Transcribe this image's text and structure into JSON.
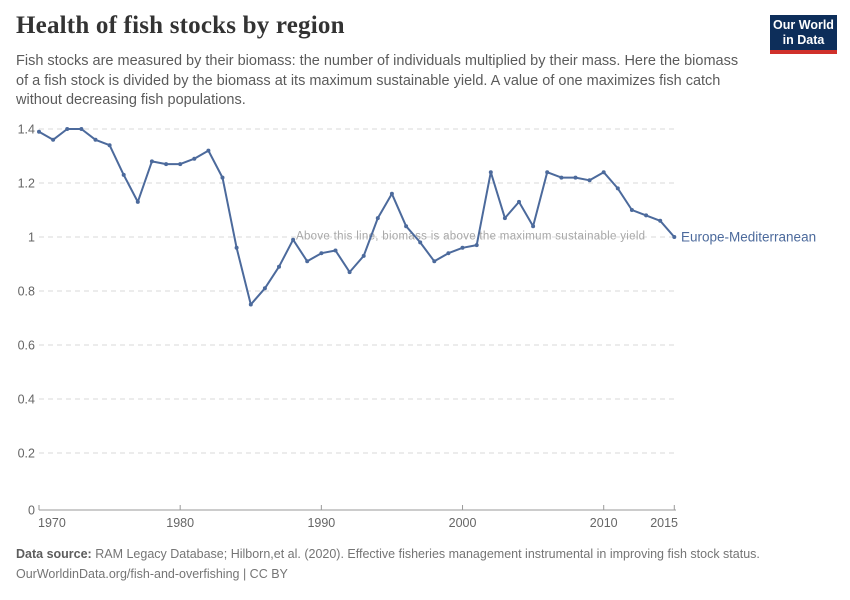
{
  "header": {
    "title": "Health of fish stocks by region",
    "subtitle_lines": [
      "Fish stocks are measured by their biomass: the number of individuals multiplied by their mass. Here the biomass",
      "of a fish stock is divided by the biomass at its maximum sustainable yield. A value of one maximizes fish catch",
      "without decreasing fish populations."
    ],
    "logo": {
      "line1": "Our World",
      "line2": "in Data",
      "bg_color": "#0d2e5a",
      "bar_color": "#d0312b"
    }
  },
  "chart_data": {
    "type": "line",
    "title": "Health of fish stocks by region",
    "xlabel": "",
    "ylabel": "",
    "xlim": [
      1970,
      2015
    ],
    "ylim": [
      0,
      1.4
    ],
    "x_ticks": [
      1970,
      1980,
      1990,
      2000,
      2010,
      2015
    ],
    "y_ticks": [
      0,
      0.2,
      0.4,
      0.6,
      0.8,
      1,
      1.2,
      1.4
    ],
    "grid": "dashed-horizontal",
    "annotation": "Above this line, biomass is above the maximum sustainable yield",
    "annotation_color": "#a8a8a8",
    "gridline_color": "#d9d9d9",
    "axis_color": "#999999",
    "tick_label_color": "#666666",
    "series": [
      {
        "name": "Europe-Mediterranean",
        "color": "#4c6a9c",
        "x": [
          1970,
          1971,
          1972,
          1973,
          1974,
          1975,
          1976,
          1977,
          1978,
          1979,
          1980,
          1981,
          1982,
          1983,
          1984,
          1985,
          1986,
          1987,
          1988,
          1989,
          1990,
          1991,
          1992,
          1993,
          1994,
          1995,
          1996,
          1997,
          1998,
          1999,
          2000,
          2001,
          2002,
          2003,
          2004,
          2005,
          2006,
          2007,
          2008,
          2009,
          2010,
          2011,
          2012,
          2013,
          2014,
          2015
        ],
        "values": [
          1.39,
          1.36,
          1.4,
          1.4,
          1.36,
          1.34,
          1.23,
          1.13,
          1.28,
          1.27,
          1.27,
          1.29,
          1.32,
          1.22,
          0.96,
          0.75,
          0.81,
          0.89,
          0.99,
          0.91,
          0.94,
          0.95,
          0.87,
          0.93,
          1.07,
          1.16,
          1.04,
          0.98,
          0.91,
          0.94,
          0.96,
          0.97,
          1.24,
          1.07,
          1.13,
          1.04,
          1.24,
          1.22,
          1.22,
          1.21,
          1.24,
          1.18,
          1.1,
          1.08,
          1.06,
          1.0
        ]
      }
    ]
  },
  "footer": {
    "source_label": "Data source:",
    "source_text": " RAM Legacy Database; Hilborn,et al. (2020). Effective fisheries management instrumental in improving fish stock status.",
    "link_text": "OurWorldinData.org/fish-and-overfishing | CC BY"
  }
}
